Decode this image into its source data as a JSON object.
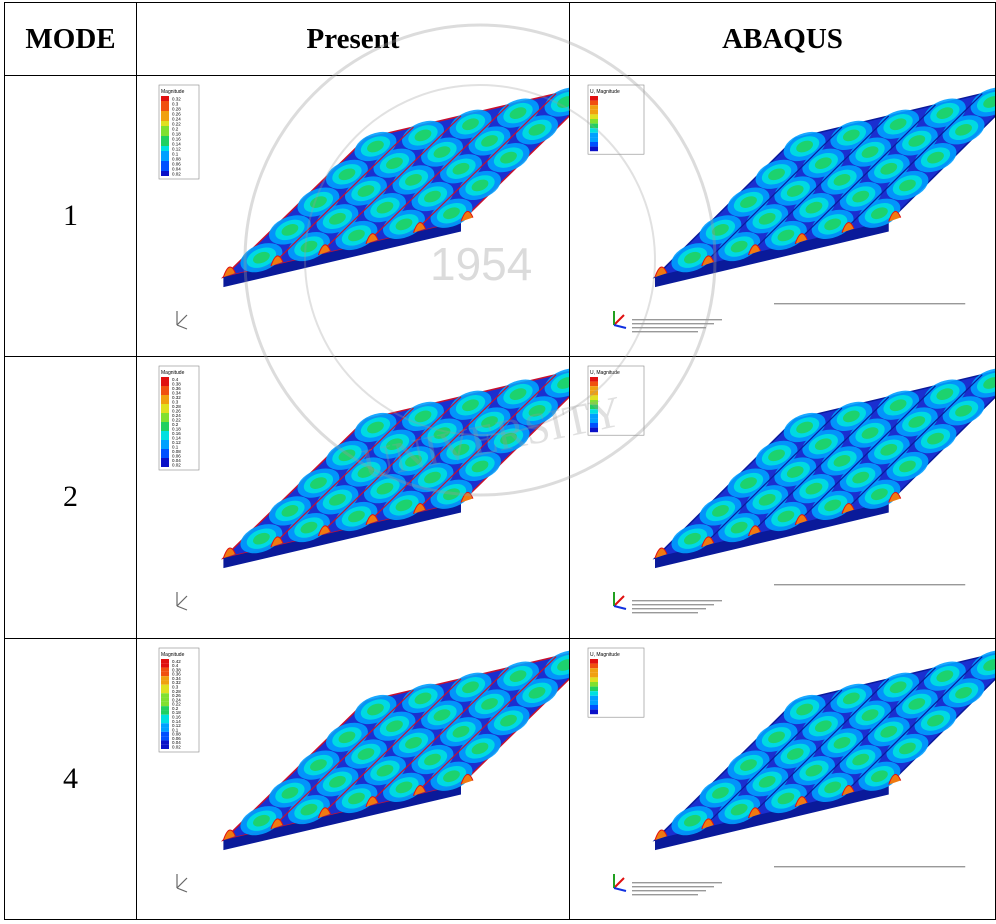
{
  "table": {
    "headers": [
      "MODE",
      "Present",
      "ABAQUS"
    ],
    "rows": [
      {
        "mode": "1"
      },
      {
        "mode": "2"
      },
      {
        "mode": "4"
      }
    ]
  },
  "legend": {
    "present_title": "Magnitude",
    "present_mode1": [
      "0.32",
      "0.3",
      "0.28",
      "0.26",
      "0.24",
      "0.22",
      "0.2",
      "0.18",
      "0.16",
      "0.14",
      "0.12",
      "0.1",
      "0.08",
      "0.06",
      "0.04",
      "0.02"
    ],
    "present_mode2": [
      "0.4",
      "0.38",
      "0.36",
      "0.34",
      "0.32",
      "0.3",
      "0.28",
      "0.26",
      "0.24",
      "0.22",
      "0.2",
      "0.18",
      "0.16",
      "0.14",
      "0.12",
      "0.1",
      "0.08",
      "0.06",
      "0.04",
      "0.02"
    ],
    "present_mode4": [
      "0.42",
      "0.4",
      "0.38",
      "0.36",
      "0.34",
      "0.32",
      "0.3",
      "0.28",
      "0.26",
      "0.24",
      "0.22",
      "0.2",
      "0.18",
      "0.16",
      "0.14",
      "0.12",
      "0.1",
      "0.08",
      "0.06",
      "0.04",
      "0.02"
    ],
    "abaqus_title": "U, Magnitude"
  },
  "watermark": {
    "year": "1954",
    "text": "UNIVERSITY"
  },
  "colors": {
    "plate_blue": "#1a2fd0",
    "plate_dark": "#0a1a9a",
    "edge_red": "#c8102e",
    "green": "#4fd35a",
    "cyan": "#22c8d8",
    "yellow": "#f0e020",
    "orange": "#f07a10",
    "red": "#e01010"
  }
}
